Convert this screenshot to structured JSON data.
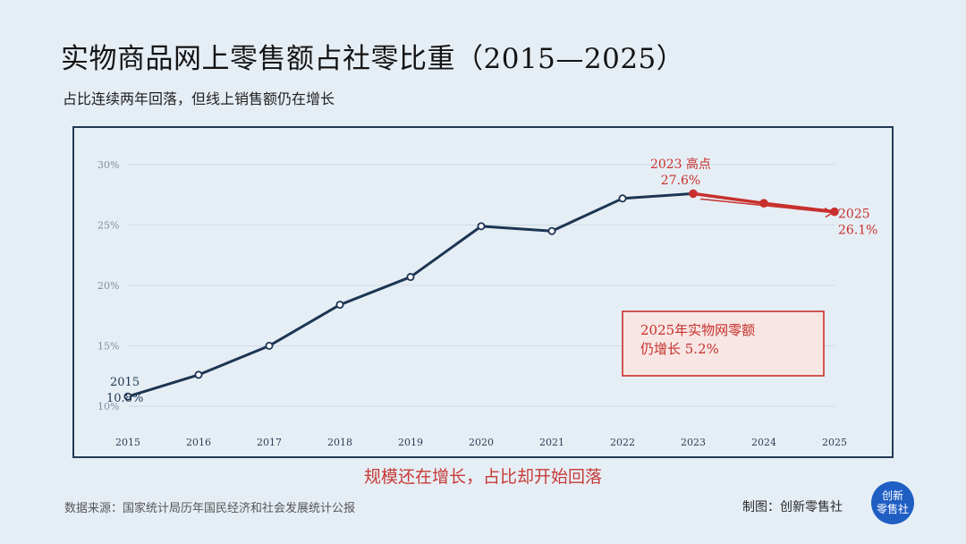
{
  "title": "实物商品网上零售额占社零比重（2015—2025）",
  "subtitle": "占比连续两年回落，但线上销售额仍在增长",
  "caption": "规模还在增长，占比却开始回落",
  "source": "数据来源：国家统计局历年国民经济和社会发展统计公报",
  "credit": "制图：创新零售社",
  "logo": {
    "line1": "创新",
    "line2": "零售社"
  },
  "colors": {
    "main": "#1c3553",
    "highlight": "#c7302c",
    "grid": "#cfdbe6",
    "box_fill": "#f7e6e4"
  },
  "chart_data": {
    "type": "line",
    "x": [
      "2015",
      "2016",
      "2017",
      "2018",
      "2019",
      "2020",
      "2021",
      "2022",
      "2023",
      "2024",
      "2025"
    ],
    "series": [
      {
        "values": [
          10.8,
          12.6,
          15.0,
          18.4,
          20.7,
          24.9,
          24.5,
          27.2,
          27.6,
          26.8,
          26.1
        ]
      }
    ],
    "highlight_from": "2023",
    "ylim": [
      10,
      30
    ],
    "yticks": [
      10,
      15,
      20,
      25,
      30
    ],
    "ytick_labels": [
      "10%",
      "15%",
      "20%",
      "25%",
      "30%"
    ],
    "grid": true,
    "annotations": {
      "start": {
        "year": "2015",
        "value": "10.8%"
      },
      "peak": {
        "line1": "2023 高点",
        "line2": "27.6%"
      },
      "end": {
        "line1": "2025",
        "line2": "26.1%"
      },
      "box": {
        "line1": "2025年实物网零额",
        "line2": "仍增长 5.2%"
      }
    }
  }
}
